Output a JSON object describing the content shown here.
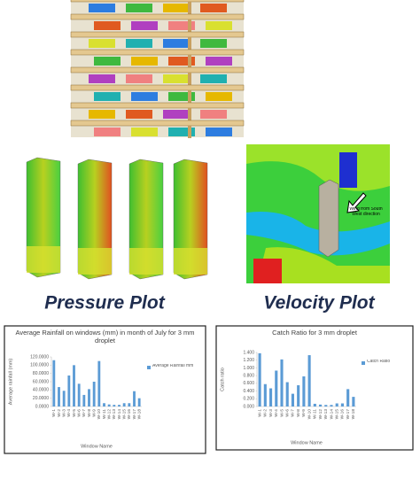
{
  "images": {
    "pressure_label": "Pressure Plot",
    "velocity_label": "Velocity Plot",
    "wind_annotation": "Wind from South West direction"
  },
  "chart_data": [
    {
      "type": "bar",
      "title": "Average Rainfall on windows (mm) in month of July for 3 mm droplet",
      "x_label": "Window Name",
      "y_label": "Average rainfall (mm)",
      "categories": [
        "W-1",
        "W-2",
        "W-3",
        "W-4",
        "W-5",
        "W-6",
        "W-7",
        "W-8",
        "W-9",
        "W-10",
        "W-11",
        "W-12",
        "W-13",
        "W-14",
        "W-15",
        "W-16",
        "W-17",
        "W-18"
      ],
      "series": [
        {
          "name": "Average Rainfall mm",
          "color": "#5b9bd5",
          "values": [
            112,
            47,
            38,
            75,
            100,
            55,
            28,
            42,
            60,
            110,
            8,
            5,
            4,
            4,
            8,
            8,
            37,
            20
          ]
        }
      ],
      "ylim": [
        0,
        120
      ],
      "yticks": [
        {
          "value": 0,
          "label": "0.0000"
        },
        {
          "value": 20,
          "label": "20.0000"
        },
        {
          "value": 40,
          "label": "40.0000"
        },
        {
          "value": 60,
          "label": "60.0000"
        },
        {
          "value": 80,
          "label": "80.0000"
        },
        {
          "value": 100,
          "label": "100.0000"
        },
        {
          "value": 120,
          "label": "120.0000"
        }
      ],
      "legend": "right"
    },
    {
      "type": "bar",
      "title": "Catch Ratio for 3 mm droplet",
      "x_label": "Window Name",
      "y_label": "Catch ratio",
      "categories": [
        "W-1",
        "W-2",
        "W-3",
        "W-4",
        "W-5",
        "W-6",
        "W-7",
        "W-8",
        "W-9",
        "W-10",
        "W-11",
        "W-12",
        "W-13",
        "W-14",
        "W-15",
        "W-16",
        "W-17",
        "W-18"
      ],
      "series": [
        {
          "name": "Catch Ratio",
          "color": "#5b9bd5",
          "values": [
            1.38,
            0.58,
            0.47,
            0.93,
            1.22,
            0.63,
            0.33,
            0.55,
            0.78,
            1.33,
            0.07,
            0.05,
            0.04,
            0.04,
            0.08,
            0.08,
            0.45,
            0.25
          ]
        }
      ],
      "ylim": [
        0,
        1.4
      ],
      "yticks": [
        {
          "value": 0,
          "label": "0.000"
        },
        {
          "value": 0.2,
          "label": "0.200"
        },
        {
          "value": 0.4,
          "label": "0.400"
        },
        {
          "value": 0.6,
          "label": "0.600"
        },
        {
          "value": 0.8,
          "label": "0.800"
        },
        {
          "value": 1,
          "label": "1.000"
        },
        {
          "value": 1.2,
          "label": "1.200"
        },
        {
          "value": 1.4,
          "label": "1.400"
        }
      ],
      "legend": "right"
    }
  ]
}
